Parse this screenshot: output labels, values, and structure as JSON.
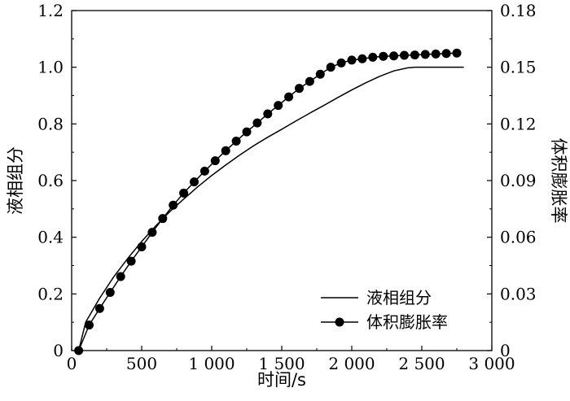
{
  "chart_data": {
    "type": "line",
    "xlabel": "时间/s",
    "ylabel_left": "液相组分",
    "ylabel_right": "体积膨胀率",
    "xlim": [
      0,
      3000
    ],
    "ylim_left": [
      0,
      1.2
    ],
    "ylim_right": [
      0,
      0.18
    ],
    "x_ticks": [
      "0",
      "500",
      "1 000",
      "1 500",
      "2 000",
      "2 500",
      "3 000"
    ],
    "y_ticks_left": [
      "0",
      "0.2",
      "0.4",
      "0.6",
      "0.8",
      "1.0",
      "1.2"
    ],
    "y_ticks_right": [
      "0",
      "0.03",
      "0.06",
      "0.09",
      "0.12",
      "0.15",
      "0.18"
    ],
    "legend_position": "bottom-right",
    "series": [
      {
        "name": "液相组分",
        "axis": "left",
        "style": "line",
        "x": [
          50,
          100,
          200,
          300,
          400,
          500,
          600,
          700,
          800,
          900,
          1000,
          1100,
          1200,
          1300,
          1400,
          1500,
          1600,
          1700,
          1800,
          1900,
          2000,
          2100,
          2200,
          2300,
          2400,
          2450,
          2500,
          2600,
          2700,
          2800
        ],
        "y": [
          0.0,
          0.1,
          0.185,
          0.26,
          0.325,
          0.385,
          0.44,
          0.49,
          0.535,
          0.578,
          0.618,
          0.655,
          0.69,
          0.723,
          0.753,
          0.781,
          0.81,
          0.838,
          0.865,
          0.893,
          0.92,
          0.945,
          0.968,
          0.987,
          0.998,
          1.0,
          1.0,
          1.0,
          1.0,
          1.0
        ]
      },
      {
        "name": "体积膨胀率",
        "axis": "right",
        "style": "line-marker",
        "x": [
          50,
          125,
          200,
          275,
          350,
          425,
          500,
          575,
          650,
          725,
          800,
          875,
          950,
          1025,
          1100,
          1175,
          1250,
          1325,
          1400,
          1475,
          1550,
          1625,
          1700,
          1775,
          1850,
          1925,
          2000,
          2075,
          2150,
          2225,
          2300,
          2375,
          2450,
          2525,
          2600,
          2675,
          2750
        ],
        "y": [
          0.0,
          0.0135,
          0.0223,
          0.0308,
          0.0392,
          0.0473,
          0.0549,
          0.0626,
          0.0699,
          0.077,
          0.0834,
          0.0893,
          0.095,
          0.1005,
          0.1058,
          0.1109,
          0.1158,
          0.1205,
          0.1253,
          0.1298,
          0.1343,
          0.1388,
          0.1425,
          0.1463,
          0.15,
          0.1523,
          0.1538,
          0.1545,
          0.1553,
          0.1558,
          0.156,
          0.1563,
          0.1565,
          0.1568,
          0.157,
          0.1573,
          0.1575
        ]
      }
    ]
  }
}
